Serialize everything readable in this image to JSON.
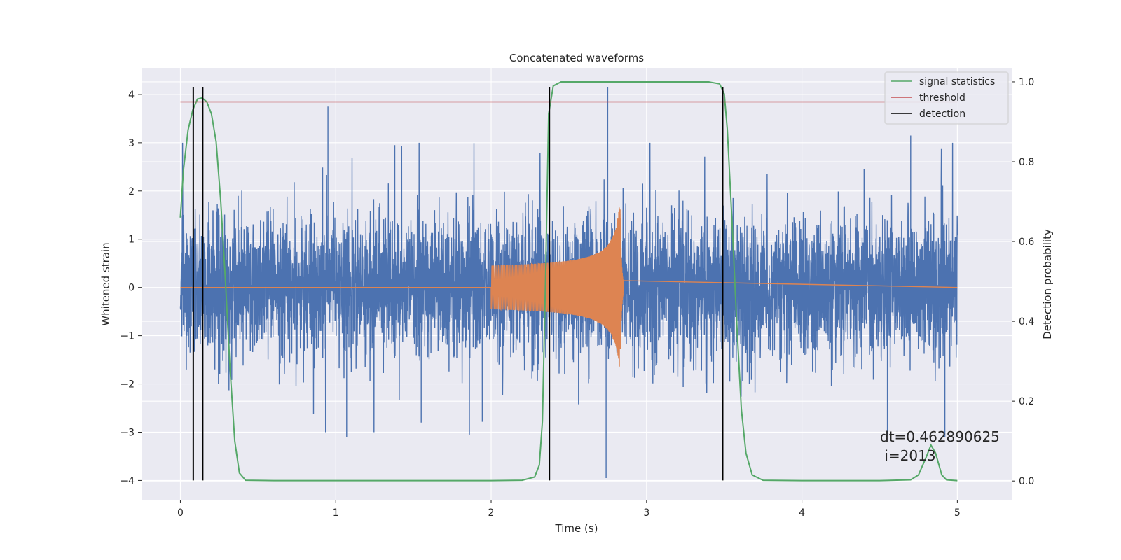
{
  "chart_data": {
    "type": "line",
    "title": "Concatenated waveforms",
    "xlabel": "Time (s)",
    "ylabel": "Whitened strain",
    "y2label": "Detection probability",
    "xlim": [
      -0.25,
      5.35
    ],
    "ylim": [
      -4.4,
      4.55
    ],
    "y2lim": [
      -0.047,
      1.035
    ],
    "xticks": [
      0,
      1,
      2,
      3,
      4,
      5
    ],
    "xtick_labels": [
      "0",
      "1",
      "2",
      "3",
      "4",
      "5"
    ],
    "yticks": [
      -4,
      -3,
      -2,
      -1,
      0,
      1,
      2,
      3,
      4
    ],
    "ytick_labels": [
      "−4",
      "−3",
      "−2",
      "−1",
      "0",
      "1",
      "2",
      "3",
      "4"
    ],
    "y2ticks": [
      0.0,
      0.2,
      0.4,
      0.6,
      0.8,
      1.0
    ],
    "y2tick_labels": [
      "0.0",
      "0.2",
      "0.4",
      "0.6",
      "0.8",
      "1.0"
    ],
    "grid": true,
    "legend_position": "top-right",
    "colors": {
      "strain": "#4c72b0",
      "template": "#dd8452",
      "signal": "#55a868",
      "threshold": "#c44e52",
      "detection": "#000000",
      "background": "#eaeaf2",
      "grid": "#ffffff"
    },
    "series": [
      {
        "name": "signal statistics",
        "axis": "right",
        "x": [
          0.0,
          0.02,
          0.05,
          0.08,
          0.11,
          0.14,
          0.17,
          0.2,
          0.23,
          0.26,
          0.29,
          0.32,
          0.35,
          0.38,
          0.42,
          0.6,
          1.0,
          1.5,
          2.0,
          2.2,
          2.28,
          2.31,
          2.33,
          2.35,
          2.37,
          2.4,
          2.45,
          2.6,
          3.0,
          3.4,
          3.47,
          3.5,
          3.52,
          3.55,
          3.58,
          3.61,
          3.64,
          3.68,
          3.75,
          4.0,
          4.5,
          4.7,
          4.75,
          4.8,
          4.83,
          4.86,
          4.9,
          4.93,
          5.0
        ],
        "y": [
          0.66,
          0.78,
          0.88,
          0.93,
          0.957,
          0.96,
          0.95,
          0.92,
          0.85,
          0.7,
          0.5,
          0.28,
          0.1,
          0.02,
          0.002,
          0.001,
          0.001,
          0.001,
          0.001,
          0.002,
          0.01,
          0.04,
          0.15,
          0.5,
          0.92,
          0.99,
          1.0,
          1.0,
          1.0,
          1.0,
          0.995,
          0.97,
          0.88,
          0.65,
          0.4,
          0.18,
          0.07,
          0.015,
          0.002,
          0.001,
          0.001,
          0.003,
          0.015,
          0.06,
          0.09,
          0.07,
          0.015,
          0.003,
          0.001
        ]
      },
      {
        "name": "threshold",
        "axis": "right",
        "x": [
          0.0,
          5.0
        ],
        "y": [
          0.95,
          0.95
        ]
      },
      {
        "name": "detection",
        "axis": "left",
        "x": [
          0.083,
          0.144,
          2.375,
          3.49
        ],
        "y_range": [
          -4.0,
          4.15
        ]
      },
      {
        "name": "",
        "axis": "left",
        "description_type": "whitened strain noise",
        "x_range": [
          0.0,
          5.0
        ],
        "typical_amplitude": 1.05,
        "peak_points": [
          [
            0.95,
            3.75
          ],
          [
            2.75,
            4.15
          ],
          [
            2.74,
            -3.95
          ],
          [
            1.07,
            -3.1
          ],
          [
            1.86,
            -3.05
          ],
          [
            4.4,
            2.45
          ],
          [
            4.7,
            3.15
          ],
          [
            4.92,
            -3.1
          ],
          [
            4.55,
            -3.05
          ],
          [
            1.55,
            -2.8
          ],
          [
            1.38,
            2.95
          ]
        ]
      },
      {
        "name": "",
        "axis": "left",
        "description_type": "chirp template",
        "x_range": [
          2.0,
          2.85
        ],
        "amplitude_start": 0.35,
        "amplitude_peak": 1.85,
        "peak_time": 2.83
      }
    ],
    "annotation": {
      "line1": "dt=0.462890625",
      "line2": " i=2013"
    }
  }
}
